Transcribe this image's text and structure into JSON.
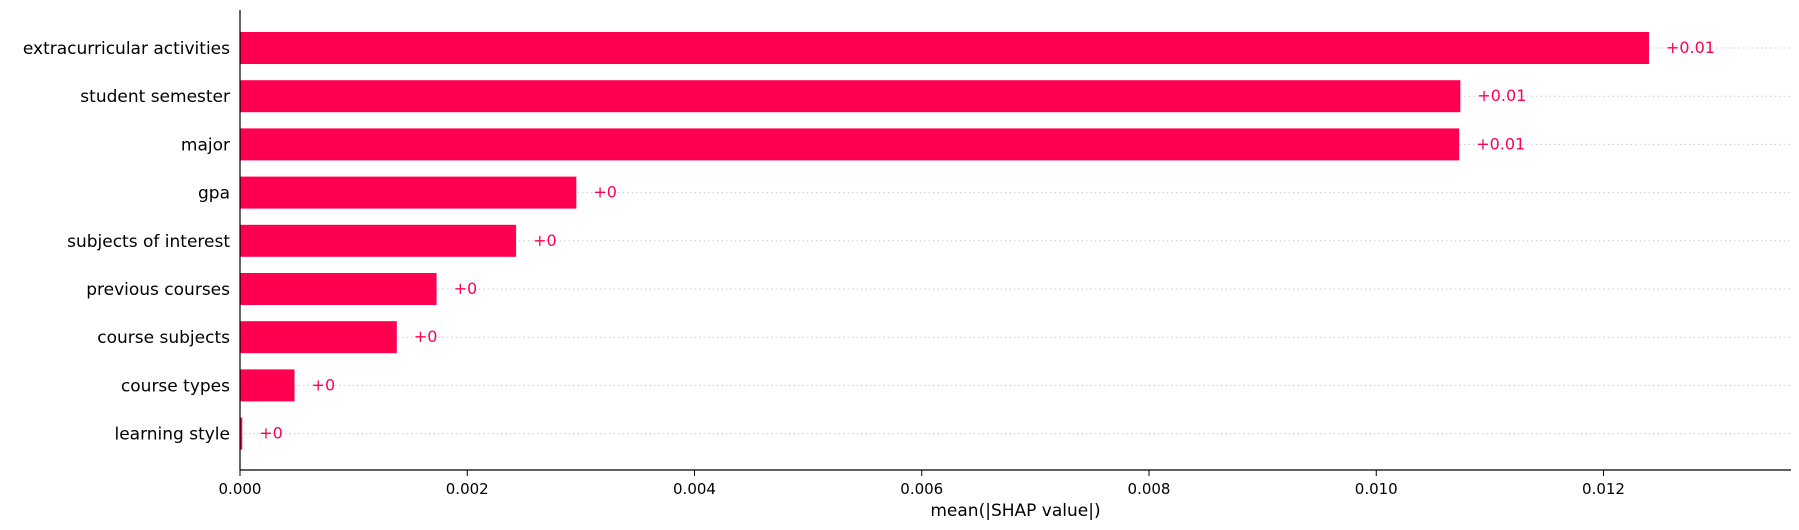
{
  "chart_data": {
    "type": "bar",
    "orientation": "horizontal",
    "categories": [
      "extracurricular activities",
      "student semester",
      "major",
      "gpa",
      "subjects of interest",
      "previous courses",
      "course subjects",
      "course types",
      "learning style"
    ],
    "values": [
      0.0124,
      0.01074,
      0.01073,
      0.00296,
      0.00243,
      0.00173,
      0.00138,
      0.00048,
      2e-05
    ],
    "value_labels": [
      "+0.01",
      "+0.01",
      "+0.01",
      "+0",
      "+0",
      "+0",
      "+0",
      "+0",
      "+0"
    ],
    "xlabel": "mean(|SHAP value|)",
    "ylabel": "",
    "xticks": [
      "0.000",
      "0.002",
      "0.004",
      "0.006",
      "0.008",
      "0.010",
      "0.012"
    ],
    "xtick_values": [
      0,
      0.002,
      0.004,
      0.006,
      0.008,
      0.01,
      0.012
    ],
    "xlim": [
      0,
      0.01365
    ],
    "grid": "dotted horizontal row lines",
    "colors": {
      "bar": "#ff0051",
      "label": "#ff0051",
      "axis": "#000000",
      "grid": "#cccccc"
    }
  }
}
